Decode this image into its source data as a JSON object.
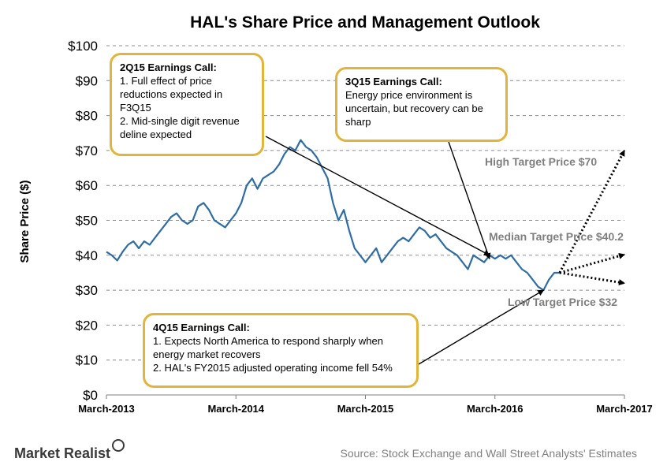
{
  "chart_data": {
    "type": "line",
    "title": "HAL's Share  Price and Management Outlook",
    "ylabel": "Share Price ($)",
    "ylim": [
      0,
      100
    ],
    "y_ticks": [
      "$0",
      "$10",
      "$20",
      "$30",
      "$40",
      "$50",
      "$60",
      "$70",
      "$80",
      "$90",
      "$100"
    ],
    "x_ticks": [
      "March-2013",
      "March-2014",
      "March-2015",
      "March-2016",
      "March-2017"
    ],
    "x_range_months": [
      0,
      48
    ],
    "grid": "horizontal-dashed",
    "series": [
      {
        "color": "#2e6da4",
        "points": [
          [
            0,
            41
          ],
          [
            0.5,
            40
          ],
          [
            1,
            38.5
          ],
          [
            1.5,
            41
          ],
          [
            2,
            43
          ],
          [
            2.5,
            44
          ],
          [
            3,
            42
          ],
          [
            3.5,
            44
          ],
          [
            4,
            43
          ],
          [
            4.5,
            45
          ],
          [
            5,
            47
          ],
          [
            5.5,
            49
          ],
          [
            6,
            51
          ],
          [
            6.5,
            52
          ],
          [
            7,
            50
          ],
          [
            7.5,
            49
          ],
          [
            8,
            50
          ],
          [
            8.5,
            54
          ],
          [
            9,
            55
          ],
          [
            9.5,
            53
          ],
          [
            10,
            50
          ],
          [
            10.5,
            49
          ],
          [
            11,
            48
          ],
          [
            11.5,
            50
          ],
          [
            12,
            52
          ],
          [
            12.5,
            55
          ],
          [
            13,
            60
          ],
          [
            13.5,
            62
          ],
          [
            14,
            59
          ],
          [
            14.5,
            62
          ],
          [
            15,
            63
          ],
          [
            15.5,
            64
          ],
          [
            16,
            66
          ],
          [
            16.5,
            69
          ],
          [
            17,
            71
          ],
          [
            17.5,
            70
          ],
          [
            18,
            73
          ],
          [
            18.5,
            71
          ],
          [
            19,
            70
          ],
          [
            19.5,
            68
          ],
          [
            20,
            65
          ],
          [
            20.5,
            62
          ],
          [
            21,
            55
          ],
          [
            21.5,
            50
          ],
          [
            22,
            53
          ],
          [
            22.5,
            47
          ],
          [
            23,
            42
          ],
          [
            23.5,
            40
          ],
          [
            24,
            38
          ],
          [
            24.5,
            40
          ],
          [
            25,
            42
          ],
          [
            25.5,
            38
          ],
          [
            26,
            40
          ],
          [
            26.5,
            42
          ],
          [
            27,
            44
          ],
          [
            27.5,
            45
          ],
          [
            28,
            44
          ],
          [
            28.5,
            46
          ],
          [
            29,
            48
          ],
          [
            29.5,
            47
          ],
          [
            30,
            45
          ],
          [
            30.5,
            46
          ],
          [
            31,
            44
          ],
          [
            31.5,
            42
          ],
          [
            32,
            41
          ],
          [
            32.5,
            40
          ],
          [
            33,
            38
          ],
          [
            33.5,
            36
          ],
          [
            34,
            40
          ],
          [
            34.5,
            39
          ],
          [
            35,
            38
          ],
          [
            35.5,
            40
          ],
          [
            36,
            39
          ],
          [
            36.5,
            40
          ],
          [
            37,
            39
          ],
          [
            37.5,
            40
          ],
          [
            38,
            38
          ],
          [
            38.5,
            36
          ],
          [
            39,
            35
          ],
          [
            39.5,
            33
          ],
          [
            40,
            31
          ],
          [
            40.5,
            30
          ],
          [
            41,
            33
          ],
          [
            41.5,
            35
          ],
          [
            42,
            35
          ]
        ]
      }
    ],
    "targets": [
      {
        "label": "High Target Price $70",
        "value": 70,
        "end_month": 48
      },
      {
        "label": "Median Target Price $40.2",
        "value": 40.2,
        "end_month": 48
      },
      {
        "label": "Low Target Price $32",
        "value": 32,
        "end_month": 48
      }
    ],
    "annotations": [
      {
        "id": "2q15",
        "title": "2Q15  Earnings Call:",
        "lines": [
          "1. Full effect of price",
          "reductions expected in",
          "F3Q15",
          "2. Mid-single digit revenue",
          "deline expected"
        ],
        "arrow_to": [
          35.5,
          40
        ]
      },
      {
        "id": "3q15",
        "title": "3Q15  Earnings Call:",
        "lines": [
          "Energy price  environment is",
          "uncertain, but recovery can be",
          "sharp"
        ],
        "arrow_to": [
          35.5,
          39
        ]
      },
      {
        "id": "4q15",
        "title": "4Q15  Earnings Call:",
        "lines": [
          "1. Expects North America to respond sharply when",
          "energy market recovers",
          "2. HAL's FY2015 adjusted operating income fell 54%"
        ],
        "arrow_to": [
          40.5,
          30
        ]
      }
    ]
  },
  "footer": {
    "brand": "Market Realist",
    "source": "Source: Stock Exchange and Wall Street Analysts' Estimates"
  }
}
